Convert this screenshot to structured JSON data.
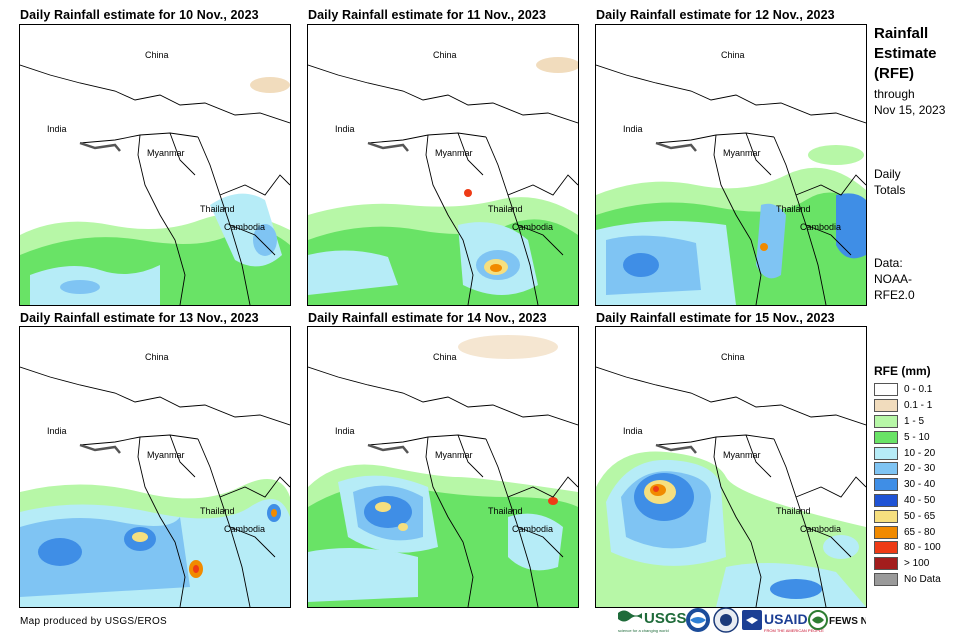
{
  "panels": [
    {
      "title": "Daily Rainfall estimate for 10 Nov., 2023"
    },
    {
      "title": "Daily Rainfall estimate for 11 Nov., 2023"
    },
    {
      "title": "Daily Rainfall estimate for 12 Nov., 2023"
    },
    {
      "title": "Daily Rainfall estimate for 13 Nov., 2023"
    },
    {
      "title": "Daily Rainfall estimate for 14 Nov., 2023"
    },
    {
      "title": "Daily Rainfall estimate for 15 Nov., 2023"
    }
  ],
  "map_labels": {
    "china": "China",
    "india": "India",
    "myanmar": "Myanmar",
    "thailand": "Thailand",
    "cambodia": "Cambodia"
  },
  "sidebar": {
    "title": [
      "Rainfall",
      "Estimate",
      "(RFE)"
    ],
    "subtitle": [
      "through",
      "Nov 15, 2023"
    ],
    "daily": [
      "Daily",
      "Totals"
    ],
    "data_source": [
      "Data:",
      "NOAA-",
      "RFE2.0"
    ]
  },
  "legend": {
    "title": "RFE (mm)",
    "items": [
      {
        "label": "0 - 0.1",
        "color": "#ffffff"
      },
      {
        "label": "0.1 - 1",
        "color": "#f1dcbd"
      },
      {
        "label": "1 - 5",
        "color": "#b7f7a7"
      },
      {
        "label": "5 - 10",
        "color": "#69e366"
      },
      {
        "label": "10 - 20",
        "color": "#b6ecf7"
      },
      {
        "label": "20 - 30",
        "color": "#7fc4f3"
      },
      {
        "label": "30 - 40",
        "color": "#3f8ee6"
      },
      {
        "label": "40 - 50",
        "color": "#1f53d5"
      },
      {
        "label": "50 - 65",
        "color": "#f6df7f"
      },
      {
        "label": "65 - 80",
        "color": "#f18a00"
      },
      {
        "label": "80 - 100",
        "color": "#ee3b16"
      },
      {
        "label": "> 100",
        "color": "#a31d1d"
      },
      {
        "label": "No Data",
        "color": "#9a9a9a"
      }
    ]
  },
  "footer": {
    "credit": "Map produced by USGS/EROS",
    "logos": {
      "usgs": "USGS",
      "usgs_tagline": "science for a changing world",
      "usaid": "USAID",
      "usaid_tagline": "FROM THE AMERICAN PEOPLE",
      "fews": "FEWS NET"
    }
  }
}
